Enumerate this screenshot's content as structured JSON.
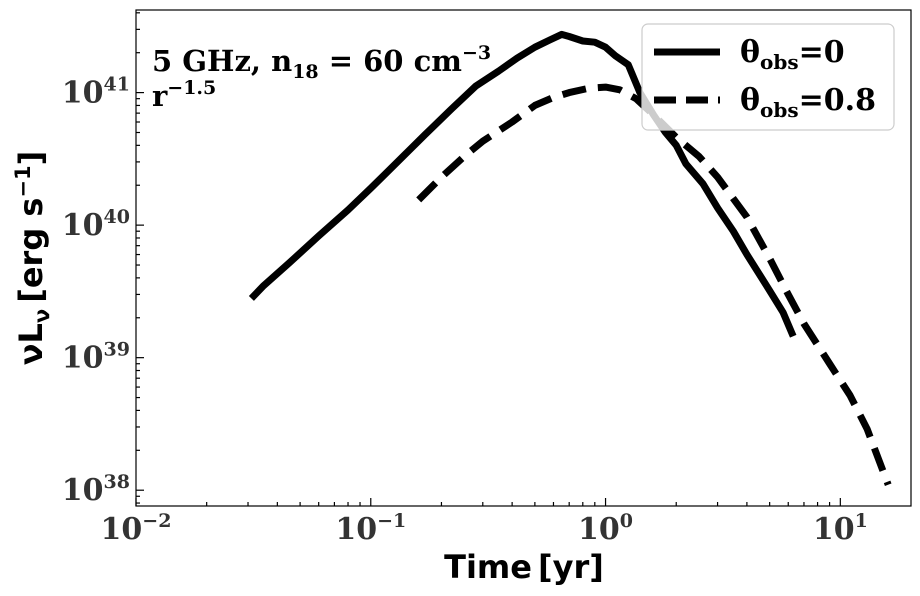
{
  "chart_data": {
    "type": "line",
    "xscale": "log",
    "yscale": "log",
    "xlim": [
      0.01,
      20
    ],
    "ylim": [
      7.6e+37,
      4.2e+41
    ],
    "xlabel": {
      "main": "Time",
      "unit": "[yr]"
    },
    "ylabel": {
      "main": "νL",
      "sub": "ν",
      "unit_pre": "[erg s",
      "unit_exp": "−1",
      "unit_post": "]"
    },
    "xticks": [
      {
        "value": 0.01,
        "base": "10",
        "exp": "−2"
      },
      {
        "value": 0.1,
        "base": "10",
        "exp": "−1"
      },
      {
        "value": 1,
        "base": "10",
        "exp": "0"
      },
      {
        "value": 10,
        "base": "10",
        "exp": "1"
      }
    ],
    "yticks": [
      {
        "value": 1e+38,
        "base": "10",
        "exp": "38"
      },
      {
        "value": 1e+39,
        "base": "10",
        "exp": "39"
      },
      {
        "value": 1e+40,
        "base": "10",
        "exp": "40"
      },
      {
        "value": 1e+41,
        "base": "10",
        "exp": "41"
      }
    ],
    "annotation": {
      "line1_pre": "5 GHz, n",
      "line1_sub": "18",
      "line1_mid": " = 60 cm",
      "line1_exp": "−3",
      "line2_pre": "r",
      "line2_exp": "−1.5"
    },
    "legend": {
      "position": "upper-right"
    },
    "series": [
      {
        "name_main": "θ",
        "name_sub": "obs",
        "name_value": "=0",
        "style": "solid",
        "color": "#000000",
        "points": [
          [
            0.031,
            2.8e+39
          ],
          [
            0.035,
            3.5e+39
          ],
          [
            0.045,
            5.2e+39
          ],
          [
            0.06,
            8.3e+39
          ],
          [
            0.08,
            1.3e+40
          ],
          [
            0.1,
            1.9e+40
          ],
          [
            0.13,
            3e+40
          ],
          [
            0.17,
            4.8e+40
          ],
          [
            0.22,
            7.5e+40
          ],
          [
            0.28,
            1.12e+41
          ],
          [
            0.35,
            1.45e+41
          ],
          [
            0.42,
            1.82e+41
          ],
          [
            0.5,
            2.2e+41
          ],
          [
            0.58,
            2.5e+41
          ],
          [
            0.65,
            2.75e+41
          ],
          [
            0.7,
            2.65e+41
          ],
          [
            0.8,
            2.45e+41
          ],
          [
            0.9,
            2.4e+41
          ],
          [
            1.0,
            2.2e+41
          ],
          [
            1.1,
            1.9e+41
          ],
          [
            1.25,
            1.62e+41
          ],
          [
            1.4,
            1e+41
          ],
          [
            1.6,
            6.8e+40
          ],
          [
            1.8,
            5e+40
          ],
          [
            2.0,
            4e+40
          ],
          [
            2.2,
            2.9e+40
          ],
          [
            2.6,
            2.05e+40
          ],
          [
            3.0,
            1.35e+40
          ],
          [
            3.5,
            9e+39
          ],
          [
            4.0,
            6e+39
          ],
          [
            5.0,
            3.2e+39
          ],
          [
            5.7,
            2.2e+39
          ],
          [
            6.3,
            1.45e+39
          ]
        ]
      },
      {
        "name_main": "θ",
        "name_sub": "obs",
        "name_value": "=0.8",
        "style": "dashed",
        "color": "#000000",
        "points": [
          [
            0.16,
            1.55e+40
          ],
          [
            0.2,
            2.3e+40
          ],
          [
            0.25,
            3.3e+40
          ],
          [
            0.3,
            4.3e+40
          ],
          [
            0.4,
            6e+40
          ],
          [
            0.5,
            8e+40
          ],
          [
            0.6,
            9.2e+40
          ],
          [
            0.7,
            1e+41
          ],
          [
            0.85,
            1.08e+41
          ],
          [
            1.0,
            1.1e+41
          ],
          [
            1.15,
            1.05e+41
          ],
          [
            1.35,
            9e+40
          ],
          [
            1.6,
            6.8e+40
          ],
          [
            2.0,
            4.6e+40
          ],
          [
            2.5,
            3.3e+40
          ],
          [
            3.0,
            2.3e+40
          ],
          [
            4.0,
            1.15e+40
          ],
          [
            5.0,
            5.6e+39
          ],
          [
            6.0,
            3e+39
          ],
          [
            7.0,
            1.8e+39
          ],
          [
            9.0,
            9e+38
          ],
          [
            11.0,
            5.2e+38
          ],
          [
            13.0,
            2.9e+38
          ],
          [
            16.0,
            1.1e+38
          ]
        ]
      }
    ]
  }
}
